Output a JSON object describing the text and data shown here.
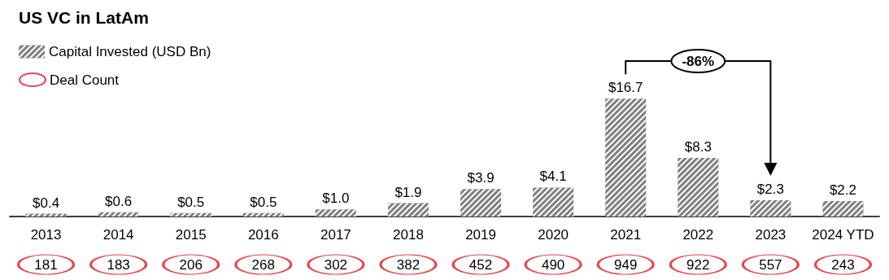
{
  "chart_data": [
    {
      "type": "bar",
      "title": "US VC in LatAm",
      "categories": [
        "2013",
        "2014",
        "2015",
        "2016",
        "2017",
        "2018",
        "2019",
        "2020",
        "2021",
        "2022",
        "2023",
        "2024 YTD"
      ],
      "series": [
        {
          "name": "Capital Invested (USD Bn)",
          "color": "#7f7f7f",
          "values": [
            0.4,
            0.6,
            0.5,
            0.5,
            1.0,
            1.9,
            3.9,
            4.1,
            16.7,
            8.3,
            2.3,
            2.2
          ],
          "value_labels": [
            "$0.4",
            "$0.6",
            "$0.5",
            "$0.5",
            "$1.0",
            "$1.9",
            "$3.9",
            "$4.1",
            "$16.7",
            "$8.3",
            "$2.3",
            "$2.2"
          ]
        }
      ],
      "data_labels": true,
      "legend": "top left",
      "annotations": [
        "-86%"
      ]
    },
    {
      "type": "other",
      "series": [
        {
          "name": "Deal Count",
          "color": "#e8434b",
          "values": [
            181,
            183,
            206,
            268,
            302,
            382,
            452,
            490,
            949,
            922,
            557,
            243
          ]
        }
      ],
      "data_labels": true,
      "legend": "top left"
    }
  ]
}
